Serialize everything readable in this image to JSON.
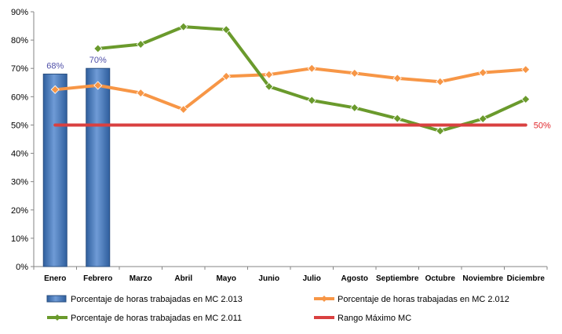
{
  "chart_data": {
    "type": "bar+line",
    "categories": [
      "Enero",
      "Febrero",
      "Marzo",
      "Abril",
      "Mayo",
      "Junio",
      "Julio",
      "Agosto",
      "Septiembre",
      "Octubre",
      "Noviembre",
      "Diciembre"
    ],
    "y_ticks": [
      "0%",
      "10%",
      "20%",
      "30%",
      "40%",
      "50%",
      "60%",
      "70%",
      "80%",
      "90%"
    ],
    "ylim": [
      0,
      90
    ],
    "grid": false,
    "legend_position": "bottom",
    "series": [
      {
        "name": "Porcentaje de horas trabajadas en MC 2.013",
        "kind": "bar",
        "color": "#4f81bd",
        "values": [
          68,
          70,
          null,
          null,
          null,
          null,
          null,
          null,
          null,
          null,
          null,
          null
        ],
        "data_labels": [
          "68%",
          "70%"
        ]
      },
      {
        "name": "Porcentaje de horas trabajadas en MC 2.012",
        "kind": "line",
        "marker": "diamond",
        "color": "#f79646",
        "values": [
          62.5,
          64,
          61.3,
          55.5,
          67.2,
          67.8,
          70,
          68.3,
          66.5,
          65.3,
          68.5,
          69.6
        ]
      },
      {
        "name": "Porcentaje de horas trabajadas en MC 2.011",
        "kind": "line",
        "marker": "diamond",
        "color": "#6a9a2c",
        "values": [
          null,
          77,
          78.5,
          84.7,
          83.7,
          63.6,
          58.7,
          56.1,
          52.3,
          47.9,
          52.2,
          59.1
        ]
      },
      {
        "name": "Rango Máximo MC",
        "kind": "line",
        "color": "#d94040",
        "values": [
          50,
          50,
          50,
          50,
          50,
          50,
          50,
          50,
          50,
          50,
          50,
          50
        ],
        "end_label": "50%"
      }
    ]
  }
}
